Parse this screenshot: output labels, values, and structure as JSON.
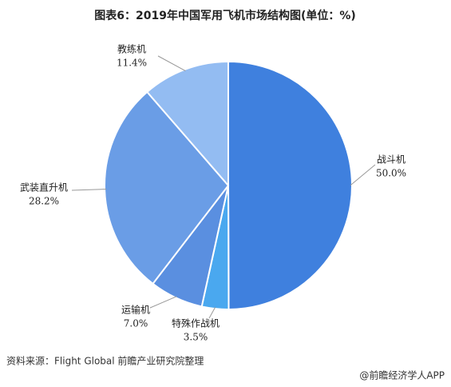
{
  "chart_data": {
    "type": "pie",
    "title": "图表6：2019年中国军用飞机市场结构图(单位：%)",
    "categories": [
      "战斗机",
      "特殊作战机",
      "运输机",
      "武装直升机",
      "教练机"
    ],
    "values": [
      50.0,
      3.5,
      7.0,
      28.2,
      11.4
    ],
    "value_labels": [
      "50.0%",
      "3.5%",
      "7.0%",
      "28.2%",
      "11.4%"
    ],
    "colors": [
      "#3f80de",
      "#4aa8ef",
      "#5a8fe0",
      "#6a9de6",
      "#93bcf2"
    ]
  },
  "footer": {
    "source": "资料来源：Flight Global  前瞻产业研究院整理",
    "brand": "@前瞻经济学人APP"
  }
}
